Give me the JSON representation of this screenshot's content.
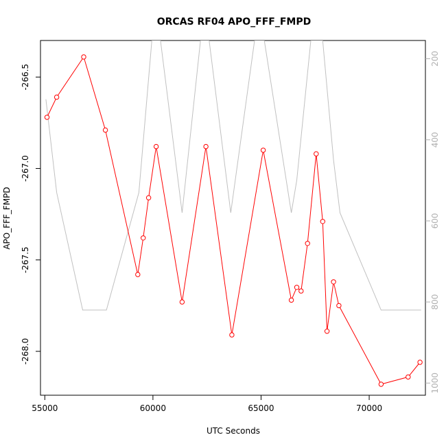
{
  "chart_data": {
    "type": "line",
    "title": "ORCAS RF04 APO_FFF_FMPD",
    "xlabel": "UTC Seconds",
    "ylabel": "APO_FFF_FMPD",
    "xlim": [
      54800,
      72600
    ],
    "ylim": [
      -268.24,
      -266.3
    ],
    "y2lim": [
      1030,
      155
    ],
    "x_ticks": [
      55000,
      60000,
      65000,
      70000
    ],
    "y_ticks": [
      -266.5,
      -267.0,
      -267.5,
      -268.0
    ],
    "y_tick_labels": [
      "-266.5",
      "-267.0",
      "-267.5",
      "-268.0"
    ],
    "y2_ticks": [
      200,
      400,
      600,
      800,
      1000
    ],
    "series": [
      {
        "color": "#ff0000",
        "marker": "open-circle",
        "x": [
          55100,
          55550,
          56800,
          57800,
          59300,
          59550,
          59800,
          60150,
          61350,
          62450,
          63650,
          65100,
          66400,
          66650,
          66850,
          67150,
          67550,
          67850,
          68050,
          68350,
          68600,
          70550,
          71800,
          72350
        ],
        "y": [
          -266.72,
          -266.61,
          -266.39,
          -266.79,
          -267.58,
          -267.38,
          -267.16,
          -266.88,
          -267.73,
          -266.88,
          -267.91,
          -266.9,
          -267.72,
          -267.65,
          -267.67,
          -267.41,
          -266.92,
          -267.29,
          -267.89,
          -267.62,
          -267.75,
          -268.18,
          -268.14,
          -268.06
        ]
      },
      {
        "color": "#c0c0c0",
        "marker": "none",
        "axis": "right",
        "x": [
          55050,
          55550,
          56750,
          57850,
          59350,
          59950,
          60350,
          61350,
          62200,
          62600,
          63600,
          64700,
          65150,
          66400,
          66650,
          67300,
          67850,
          68350,
          68650,
          70550,
          71800,
          72400
        ],
        "y": [
          300,
          530,
          820,
          820,
          530,
          155,
          155,
          580,
          155,
          155,
          580,
          155,
          155,
          580,
          500,
          155,
          155,
          450,
          580,
          820,
          820,
          820
        ]
      }
    ]
  }
}
